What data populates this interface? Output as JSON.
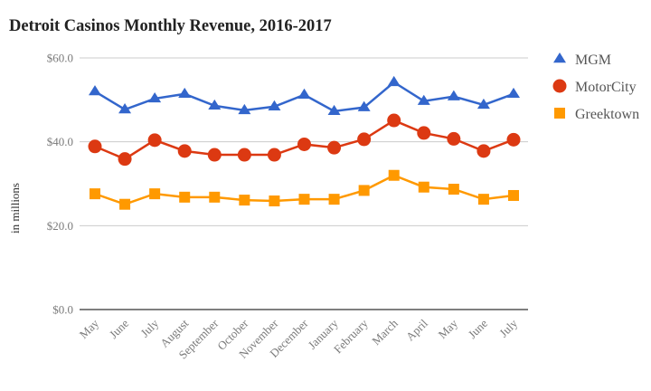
{
  "chart_data": {
    "type": "line",
    "title": "Detroit Casinos Monthly Revenue, 2016-2017",
    "xlabel": "",
    "ylabel": "in millions",
    "ylim": [
      0,
      60
    ],
    "yticks": [
      0,
      20,
      40,
      60
    ],
    "ytick_labels": [
      "$0.0",
      "$20.0",
      "$40.0",
      "$60.0"
    ],
    "grid": true,
    "legend_position": "right",
    "categories": [
      "May",
      "June",
      "July",
      "August",
      "September",
      "October",
      "November",
      "December",
      "January",
      "February",
      "March",
      "April",
      "May",
      "June",
      "July"
    ],
    "series": [
      {
        "name": "MGM",
        "color": "#3366cc",
        "marker": "triangle",
        "values": [
          52.0,
          47.7,
          50.3,
          51.4,
          48.6,
          47.5,
          48.4,
          51.2,
          47.3,
          48.2,
          54.2,
          49.7,
          50.8,
          48.8,
          51.4
        ]
      },
      {
        "name": "MotorCity",
        "color": "#dc3912",
        "marker": "circle",
        "values": [
          38.9,
          35.9,
          40.4,
          37.8,
          36.9,
          36.9,
          36.9,
          39.4,
          38.6,
          40.6,
          45.1,
          42.1,
          40.7,
          37.8,
          40.5
        ]
      },
      {
        "name": "Greektown",
        "color": "#ff9900",
        "marker": "square",
        "values": [
          27.6,
          25.1,
          27.6,
          26.8,
          26.8,
          26.1,
          25.9,
          26.3,
          26.3,
          28.4,
          32.0,
          29.2,
          28.7,
          26.3,
          27.2
        ]
      }
    ]
  }
}
